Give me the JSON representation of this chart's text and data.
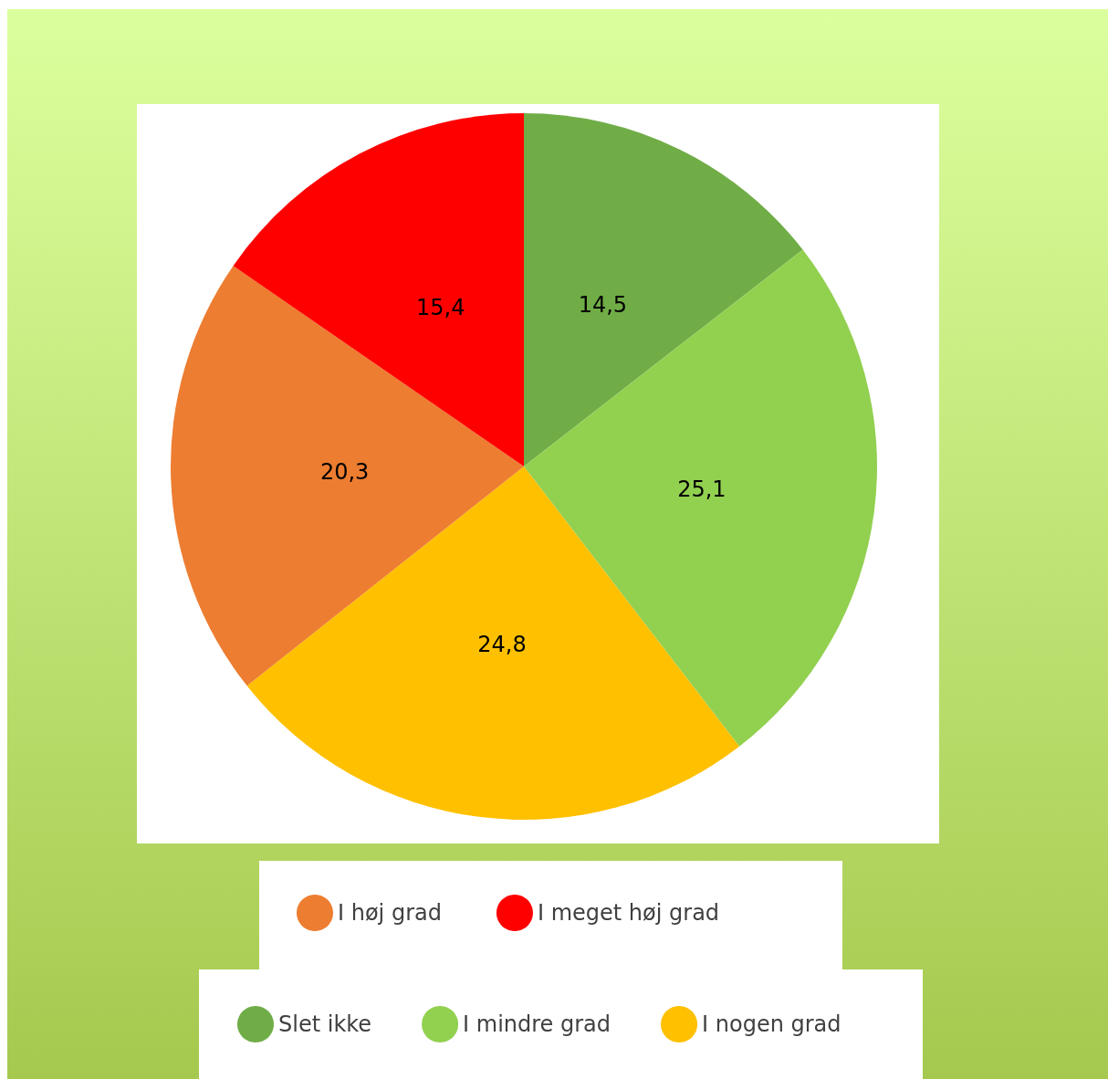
{
  "chart_data": {
    "type": "pie",
    "categories": [
      "Slet ikke",
      "I mindre grad",
      "I nogen grad",
      "I høj grad",
      "I meget høj grad"
    ],
    "values": [
      14.5,
      25.1,
      24.8,
      20.3,
      15.4
    ],
    "value_labels": [
      "14,5",
      "25,1",
      "24,8",
      "20,3",
      "15,4"
    ],
    "colors": [
      "#70ad47",
      "#92d050",
      "#ffc000",
      "#ed7d31",
      "#ff0000"
    ],
    "legend": "bottom"
  }
}
